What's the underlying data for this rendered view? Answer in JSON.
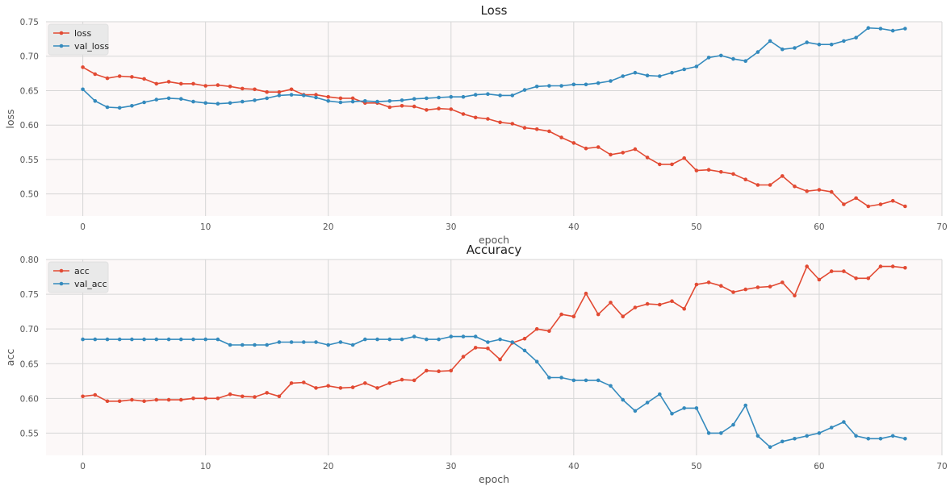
{
  "chart_data": [
    {
      "type": "line",
      "title": "Loss",
      "xlabel": "epoch",
      "ylabel": "loss",
      "xlim": [
        -3,
        70
      ],
      "ylim": [
        0.468,
        0.75
      ],
      "xticks": [
        "0",
        "10",
        "20",
        "30",
        "40",
        "50",
        "60",
        "70"
      ],
      "yticks": [
        "0.50",
        "0.55",
        "0.60",
        "0.65",
        "0.70",
        "0.75"
      ],
      "grid": true,
      "legend": "top-left",
      "series": [
        {
          "name": "loss",
          "color": "#e24a33",
          "values": [
            0.684,
            0.674,
            0.668,
            0.671,
            0.67,
            0.667,
            0.66,
            0.663,
            0.66,
            0.66,
            0.657,
            0.658,
            0.656,
            0.653,
            0.652,
            0.648,
            0.648,
            0.652,
            0.644,
            0.644,
            0.641,
            0.639,
            0.639,
            0.632,
            0.632,
            0.626,
            0.628,
            0.627,
            0.622,
            0.624,
            0.623,
            0.616,
            0.611,
            0.609,
            0.604,
            0.602,
            0.596,
            0.594,
            0.591,
            0.582,
            0.574,
            0.566,
            0.568,
            0.557,
            0.56,
            0.565,
            0.553,
            0.543,
            0.543,
            0.552,
            0.534,
            0.535,
            0.532,
            0.529,
            0.521,
            0.513,
            0.513,
            0.526,
            0.511,
            0.504,
            0.506,
            0.503,
            0.485,
            0.494,
            0.482,
            0.485,
            0.49,
            0.482
          ]
        },
        {
          "name": "val_loss",
          "color": "#348abd",
          "values": [
            0.652,
            0.635,
            0.626,
            0.625,
            0.628,
            0.633,
            0.637,
            0.639,
            0.638,
            0.634,
            0.632,
            0.631,
            0.632,
            0.634,
            0.636,
            0.639,
            0.643,
            0.644,
            0.643,
            0.64,
            0.635,
            0.633,
            0.634,
            0.635,
            0.634,
            0.635,
            0.636,
            0.638,
            0.639,
            0.64,
            0.641,
            0.641,
            0.644,
            0.645,
            0.643,
            0.643,
            0.651,
            0.656,
            0.657,
            0.657,
            0.659,
            0.659,
            0.661,
            0.664,
            0.671,
            0.676,
            0.672,
            0.671,
            0.676,
            0.681,
            0.685,
            0.698,
            0.701,
            0.696,
            0.693,
            0.706,
            0.722,
            0.71,
            0.712,
            0.72,
            0.717,
            0.717,
            0.722,
            0.727,
            0.741,
            0.74,
            0.737,
            0.74
          ]
        }
      ]
    },
    {
      "type": "line",
      "title": "Accuracy",
      "xlabel": "epoch",
      "ylabel": "acc",
      "xlim": [
        -3,
        70
      ],
      "ylim": [
        0.518,
        0.8
      ],
      "xticks": [
        "0",
        "10",
        "20",
        "30",
        "40",
        "50",
        "60",
        "70"
      ],
      "yticks": [
        "0.55",
        "0.60",
        "0.65",
        "0.70",
        "0.75",
        "0.80"
      ],
      "grid": true,
      "legend": "top-left",
      "series": [
        {
          "name": "acc",
          "color": "#e24a33",
          "values": [
            0.603,
            0.605,
            0.596,
            0.596,
            0.598,
            0.596,
            0.598,
            0.598,
            0.598,
            0.6,
            0.6,
            0.6,
            0.606,
            0.603,
            0.602,
            0.608,
            0.603,
            0.622,
            0.623,
            0.615,
            0.618,
            0.615,
            0.616,
            0.622,
            0.615,
            0.622,
            0.627,
            0.626,
            0.64,
            0.639,
            0.64,
            0.66,
            0.673,
            0.672,
            0.656,
            0.68,
            0.686,
            0.7,
            0.697,
            0.721,
            0.718,
            0.751,
            0.721,
            0.738,
            0.718,
            0.731,
            0.736,
            0.735,
            0.74,
            0.729,
            0.764,
            0.767,
            0.762,
            0.753,
            0.757,
            0.76,
            0.761,
            0.767,
            0.748,
            0.79,
            0.771,
            0.783,
            0.783,
            0.773,
            0.773,
            0.79,
            0.79,
            0.788
          ]
        },
        {
          "name": "val_acc",
          "color": "#348abd",
          "values": [
            0.685,
            0.685,
            0.685,
            0.685,
            0.685,
            0.685,
            0.685,
            0.685,
            0.685,
            0.685,
            0.685,
            0.685,
            0.677,
            0.677,
            0.677,
            0.677,
            0.681,
            0.681,
            0.681,
            0.681,
            0.677,
            0.681,
            0.677,
            0.685,
            0.685,
            0.685,
            0.685,
            0.689,
            0.685,
            0.685,
            0.689,
            0.689,
            0.689,
            0.681,
            0.685,
            0.681,
            0.669,
            0.653,
            0.63,
            0.63,
            0.626,
            0.626,
            0.626,
            0.618,
            0.598,
            0.582,
            0.594,
            0.606,
            0.578,
            0.586,
            0.586,
            0.55,
            0.55,
            0.562,
            0.59,
            0.546,
            0.53,
            0.538,
            0.542,
            0.546,
            0.55,
            0.558,
            0.566,
            0.546,
            0.542,
            0.542,
            0.546,
            0.542
          ]
        }
      ]
    }
  ]
}
